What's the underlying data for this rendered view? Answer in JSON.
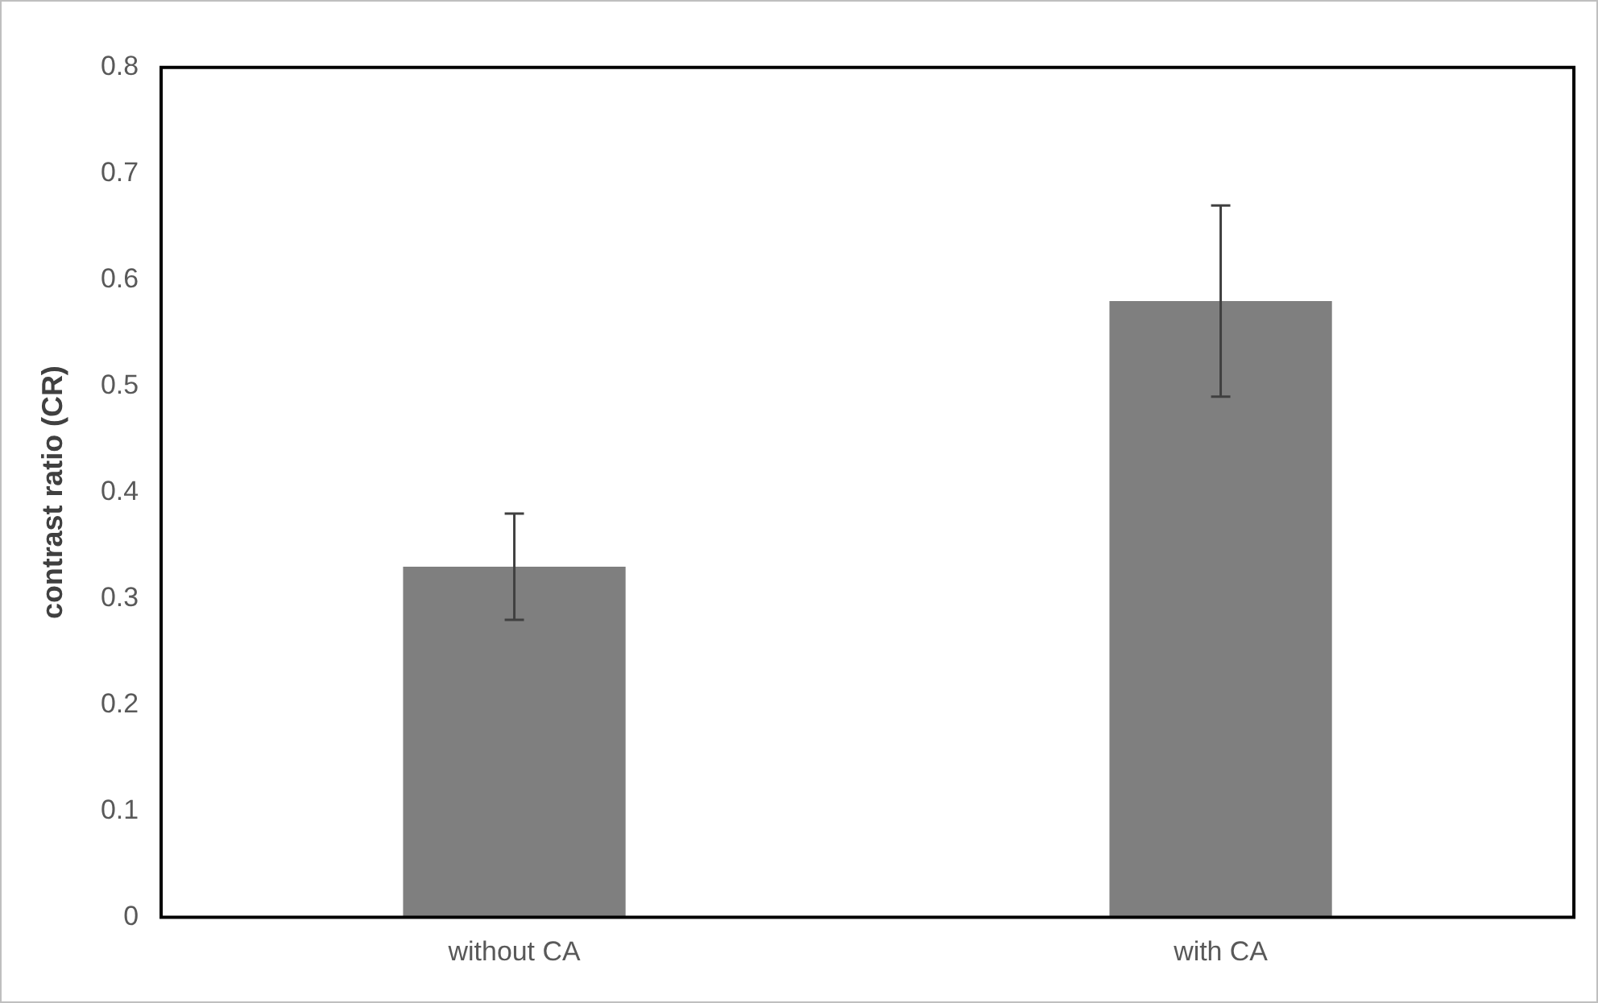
{
  "chart_data": {
    "type": "bar",
    "ylabel": "contrast ratio (CR)",
    "categories": [
      "without CA",
      "with CA"
    ],
    "values": [
      0.33,
      0.58
    ],
    "errors": [
      0.05,
      0.09
    ],
    "color": "#7f7f7f",
    "ylim": [
      0,
      0.8
    ],
    "yticks": [
      0,
      0.1,
      0.2,
      0.3,
      0.4,
      0.5,
      0.6,
      0.7,
      0.8
    ]
  }
}
